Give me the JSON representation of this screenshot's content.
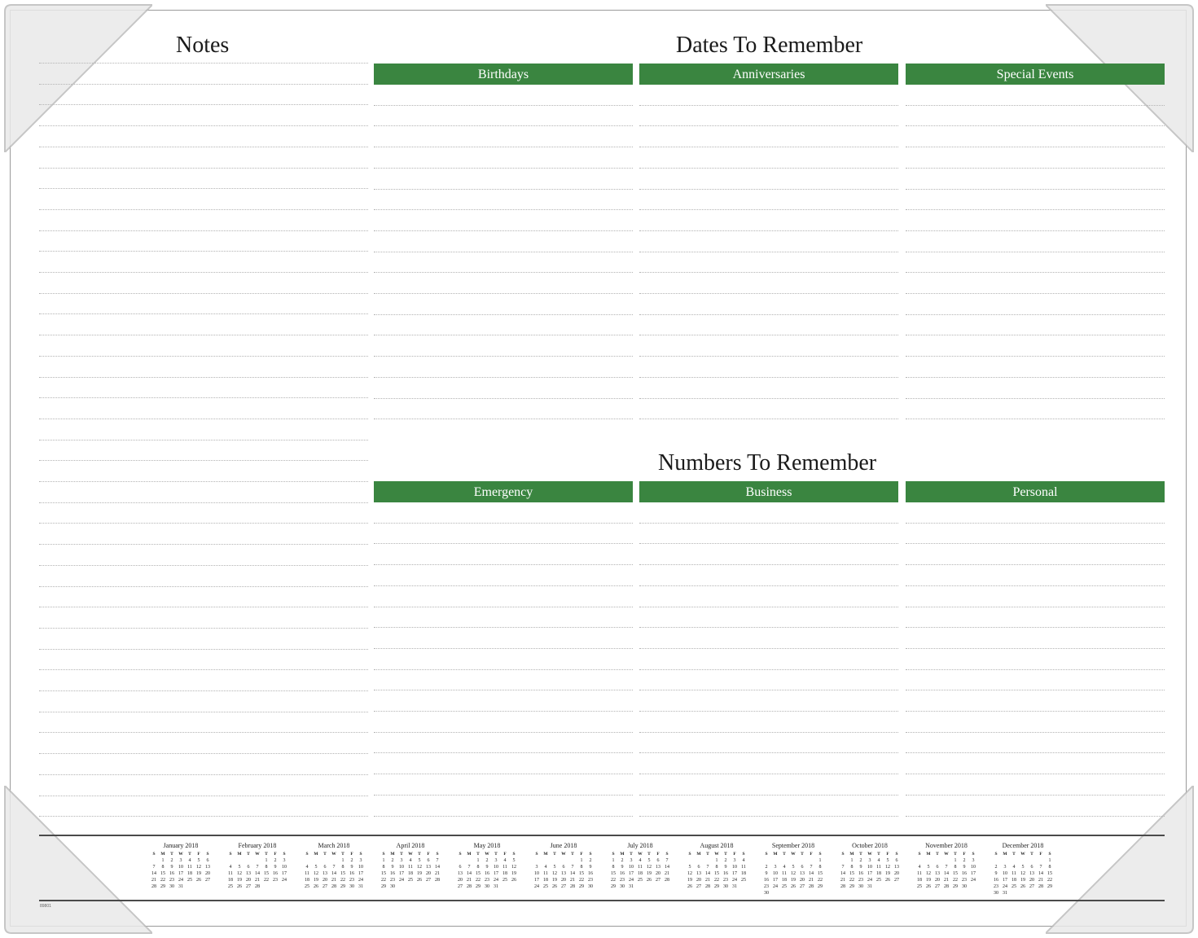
{
  "notes": {
    "title": "Notes"
  },
  "dates": {
    "title": "Dates To Remember",
    "columns": [
      "Birthdays",
      "Anniversaries",
      "Special Events"
    ]
  },
  "numbers": {
    "title": "Numbers To Remember",
    "columns": [
      "Emergency",
      "Business",
      "Personal"
    ]
  },
  "colors": {
    "header_bar": "#3a8540",
    "rule": "#b3b3b3",
    "frame": "#9a9a9a"
  },
  "calendar": {
    "weekday_labels": [
      "S",
      "M",
      "T",
      "W",
      "T",
      "F",
      "S"
    ],
    "months": [
      {
        "name": "January 2018",
        "year": 2018,
        "month": 1
      },
      {
        "name": "February 2018",
        "year": 2018,
        "month": 2
      },
      {
        "name": "March 2018",
        "year": 2018,
        "month": 3
      },
      {
        "name": "April 2018",
        "year": 2018,
        "month": 4
      },
      {
        "name": "May 2018",
        "year": 2018,
        "month": 5
      },
      {
        "name": "June 2018",
        "year": 2018,
        "month": 6
      },
      {
        "name": "July 2018",
        "year": 2018,
        "month": 7
      },
      {
        "name": "August 2018",
        "year": 2018,
        "month": 8
      },
      {
        "name": "September 2018",
        "year": 2018,
        "month": 9
      },
      {
        "name": "October 2018",
        "year": 2018,
        "month": 10
      },
      {
        "name": "November 2018",
        "year": 2018,
        "month": 11
      },
      {
        "name": "December 2018",
        "year": 2018,
        "month": 12
      }
    ]
  },
  "product_code": "89801"
}
